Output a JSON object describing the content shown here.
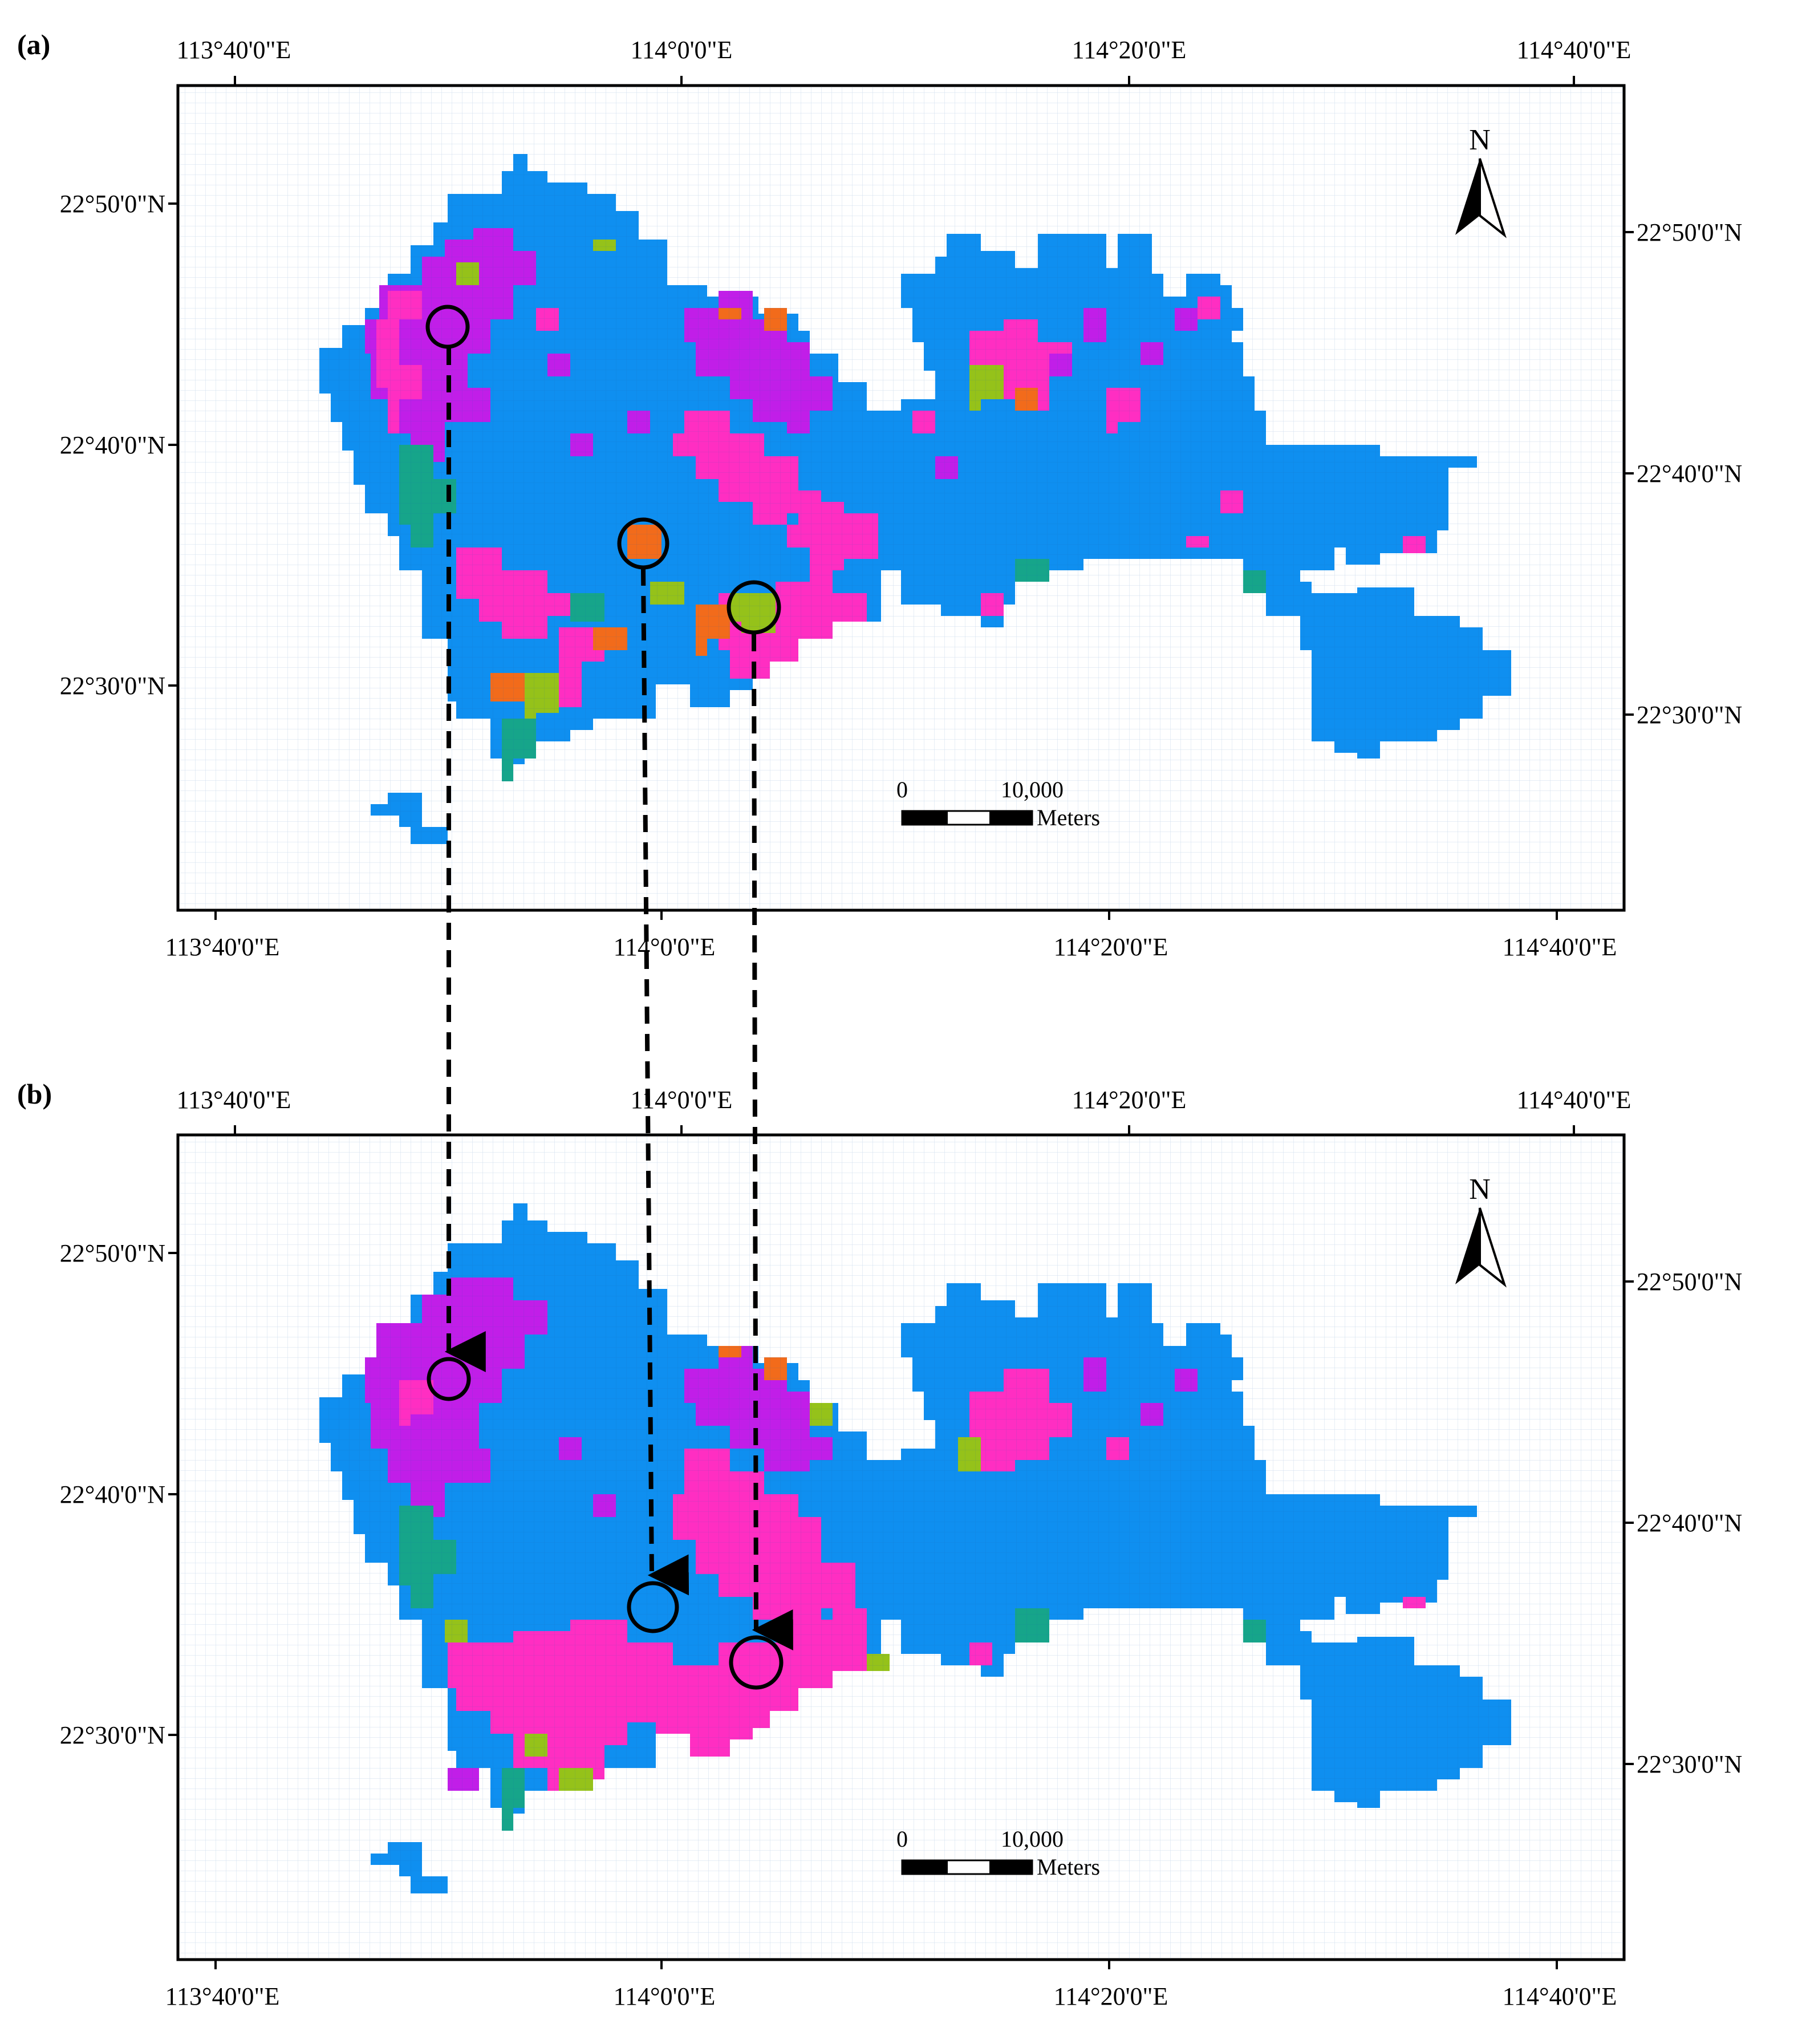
{
  "colors": {
    "water_blue": "#0f8ff0",
    "magenta": "#ff2ec2",
    "purple": "#c11ee8",
    "orange": "#f26b1b",
    "yellow_green": "#95c21a",
    "teal": "#16a58a",
    "frame": "#000000"
  },
  "panels": [
    {
      "label": "(a)",
      "top_ticks": [
        "113°40'0\"E",
        "114°0'0\"E",
        "114°20'0\"E",
        "114°40'0\"E"
      ],
      "bottom_ticks": [
        "113°40'0\"E",
        "114°0'0\"E",
        "114°20'0\"E",
        "114°40'0\"E"
      ],
      "left_ticks": [
        "22°50'0\"N",
        "22°40'0\"N",
        "22°30'0\"N"
      ],
      "right_ticks": [
        "22°50'0\"N",
        "22°40'0\"N",
        "22°30'0\"N"
      ],
      "north_label": "N",
      "scale": {
        "zero": "0",
        "max": "10,000",
        "unit": "Meters"
      }
    },
    {
      "label": "(b)",
      "top_ticks": [
        "113°40'0\"E",
        "114°0'0\"E",
        "114°20'0\"E",
        "114°40'0\"E"
      ],
      "bottom_ticks": [
        "113°40'0\"E",
        "114°0'0\"E",
        "114°20'0\"E",
        "114°40'0\"E"
      ],
      "left_ticks": [
        "22°50'0\"N",
        "22°40'0\"N",
        "22°30'0\"N"
      ],
      "right_ticks": [
        "22°50'0\"N",
        "22°40'0\"N",
        "22°30'0\"N"
      ],
      "north_label": "N",
      "scale": {
        "zero": "0",
        "max": "10,000",
        "unit": "Meters"
      }
    }
  ]
}
